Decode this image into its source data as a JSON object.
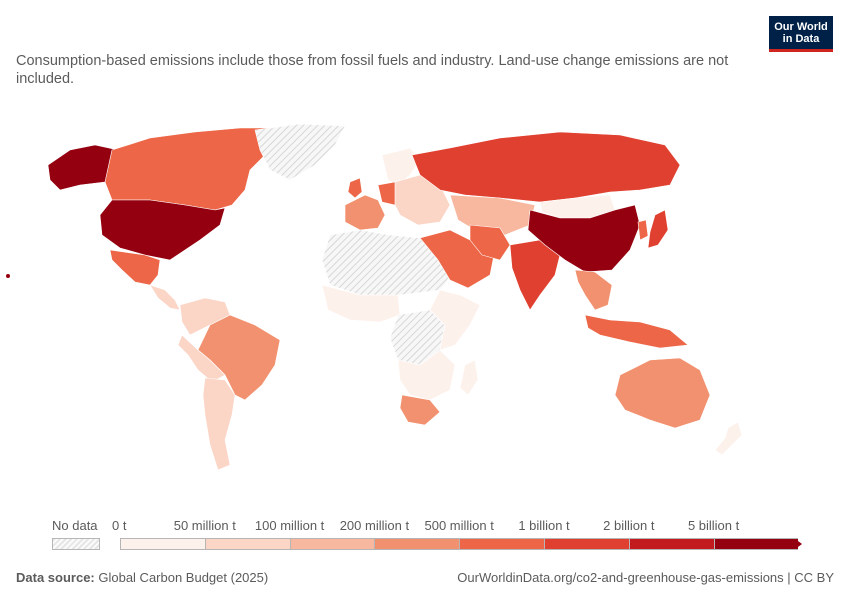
{
  "subtitle": "Consumption-based emissions include those from fossil fuels and industry. Land-use change emissions are not included.",
  "logo": {
    "line1": "Our World",
    "line2": "in Data"
  },
  "legend": {
    "no_data_label": "No data",
    "bins": [
      {
        "label": "0 t",
        "color": "#fdf1ec"
      },
      {
        "label": "50 million t",
        "color": "#fbd5c6"
      },
      {
        "label": "100 million t",
        "color": "#f8b8a0"
      },
      {
        "label": "200 million t",
        "color": "#f2916f"
      },
      {
        "label": "500 million t",
        "color": "#ec6647"
      },
      {
        "label": "1 billion t",
        "color": "#e0402f"
      },
      {
        "label": "2 billion t",
        "color": "#c21a1f"
      },
      {
        "label": "5 billion t",
        "color": "#94000f"
      }
    ]
  },
  "footer": {
    "source_label": "Data source:",
    "source_text": " Global Carbon Budget (2025)",
    "url_text": "OurWorldinData.org/co2-and-greenhouse-gas-emissions | CC BY"
  },
  "regions": [
    {
      "name": "alaska",
      "color": "#94000f"
    },
    {
      "name": "canada",
      "color": "#ec6647"
    },
    {
      "name": "united-states",
      "color": "#94000f"
    },
    {
      "name": "mexico",
      "color": "#ec6647"
    },
    {
      "name": "central-america",
      "color": "#fbd5c6"
    },
    {
      "name": "colombia-venezuela",
      "color": "#fbd5c6"
    },
    {
      "name": "brazil",
      "color": "#f2916f"
    },
    {
      "name": "peru-bolivia",
      "color": "#fbd5c6"
    },
    {
      "name": "argentina-chile",
      "color": "#fbd5c6"
    },
    {
      "name": "greenland",
      "color": "nodata"
    },
    {
      "name": "iceland-scandinavia",
      "color": "#fdf1ec"
    },
    {
      "name": "uk",
      "color": "#ec6647"
    },
    {
      "name": "western-europe",
      "color": "#f2916f"
    },
    {
      "name": "germany",
      "color": "#ec6647"
    },
    {
      "name": "eastern-europe",
      "color": "#fbd5c6"
    },
    {
      "name": "russia",
      "color": "#e0402f"
    },
    {
      "name": "kazakhstan-central-asia",
      "color": "#f8b8a0"
    },
    {
      "name": "north-africa",
      "color": "nodata"
    },
    {
      "name": "west-africa",
      "color": "#fdf1ec"
    },
    {
      "name": "central-africa",
      "color": "nodata"
    },
    {
      "name": "east-africa",
      "color": "#fdf1ec"
    },
    {
      "name": "southern-africa",
      "color": "#fdf1ec"
    },
    {
      "name": "south-africa",
      "color": "#f2916f"
    },
    {
      "name": "madagascar",
      "color": "#fdf1ec"
    },
    {
      "name": "middle-east",
      "color": "#ec6647"
    },
    {
      "name": "iran",
      "color": "#ec6647"
    },
    {
      "name": "india",
      "color": "#e0402f"
    },
    {
      "name": "mongolia",
      "color": "#fdf1ec"
    },
    {
      "name": "china",
      "color": "#94000f"
    },
    {
      "name": "japan",
      "color": "#e0402f"
    },
    {
      "name": "korea",
      "color": "#ec6647"
    },
    {
      "name": "southeast-asia",
      "color": "#f2916f"
    },
    {
      "name": "indonesia",
      "color": "#ec6647"
    },
    {
      "name": "australia",
      "color": "#f2916f"
    },
    {
      "name": "new-zealand",
      "color": "#fdf1ec"
    }
  ]
}
